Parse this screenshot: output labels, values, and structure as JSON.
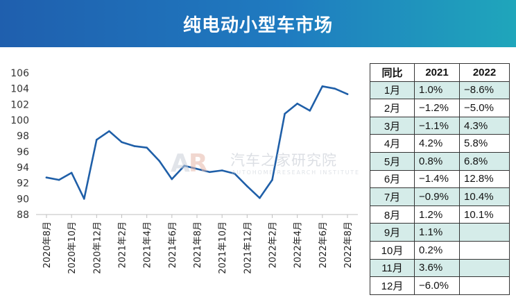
{
  "title": "纯电动小型车市场",
  "colors": {
    "line": "#1f5fa8",
    "banner_start": "#1f5fae",
    "banner_end": "#1fa6bb",
    "table_stripe": "#d5ece9"
  },
  "watermark": {
    "logo": "AR",
    "text_cn": "汽车之家研究院",
    "text_en": "AUTOHOME RESEARCH INSTITUTE"
  },
  "chart_data": {
    "type": "line",
    "title": "",
    "xlabel": "",
    "ylabel": "",
    "ylim": [
      88,
      106
    ],
    "yticks": [
      88,
      90,
      92,
      94,
      96,
      98,
      100,
      102,
      104,
      106
    ],
    "x": [
      "2020年8月",
      "2020年9月",
      "2020年10月",
      "2020年11月",
      "2020年12月",
      "2021年1月",
      "2021年2月",
      "2021年3月",
      "2021年4月",
      "2021年5月",
      "2021年6月",
      "2021年7月",
      "2021年8月",
      "2021年9月",
      "2021年10月",
      "2021年11月",
      "2021年12月",
      "2022年1月",
      "2022年2月",
      "2022年3月",
      "2022年4月",
      "2022年5月",
      "2022年6月",
      "2022年7月",
      "2022年8月"
    ],
    "xtick_labels": [
      "2020年8月",
      "2020年10月",
      "2020年12月",
      "2021年2月",
      "2021年4月",
      "2021年6月",
      "2021年8月",
      "2021年10月",
      "2021年12月",
      "2022年2月",
      "2022年4月",
      "2022年6月",
      "2022年8月"
    ],
    "series": [
      {
        "values": [
          92.7,
          92.4,
          93.3,
          90.0,
          97.5,
          98.6,
          97.2,
          96.7,
          96.5,
          94.8,
          92.5,
          94.2,
          93.8,
          93.4,
          93.6,
          93.2,
          91.6,
          90.1,
          92.4,
          100.8,
          102.1,
          101.2,
          104.3,
          104.0,
          103.3
        ]
      }
    ],
    "grid": false,
    "legend": "none"
  },
  "table": {
    "headers": [
      "同比",
      "2021",
      "2022"
    ],
    "rows": [
      [
        "1月",
        "1.0%",
        "−8.6%"
      ],
      [
        "2月",
        "−1.2%",
        "−5.0%"
      ],
      [
        "3月",
        "−1.1%",
        "4.3%"
      ],
      [
        "4月",
        "4.2%",
        "5.8%"
      ],
      [
        "5月",
        "0.8%",
        "6.8%"
      ],
      [
        "6月",
        "−1.4%",
        "12.8%"
      ],
      [
        "7月",
        "−0.9%",
        "10.4%"
      ],
      [
        "8月",
        "1.2%",
        "10.1%"
      ],
      [
        "9月",
        "1.1%",
        ""
      ],
      [
        "10月",
        "0.2%",
        ""
      ],
      [
        "11月",
        "3.6%",
        ""
      ],
      [
        "12月",
        "−6.0%",
        ""
      ]
    ]
  }
}
